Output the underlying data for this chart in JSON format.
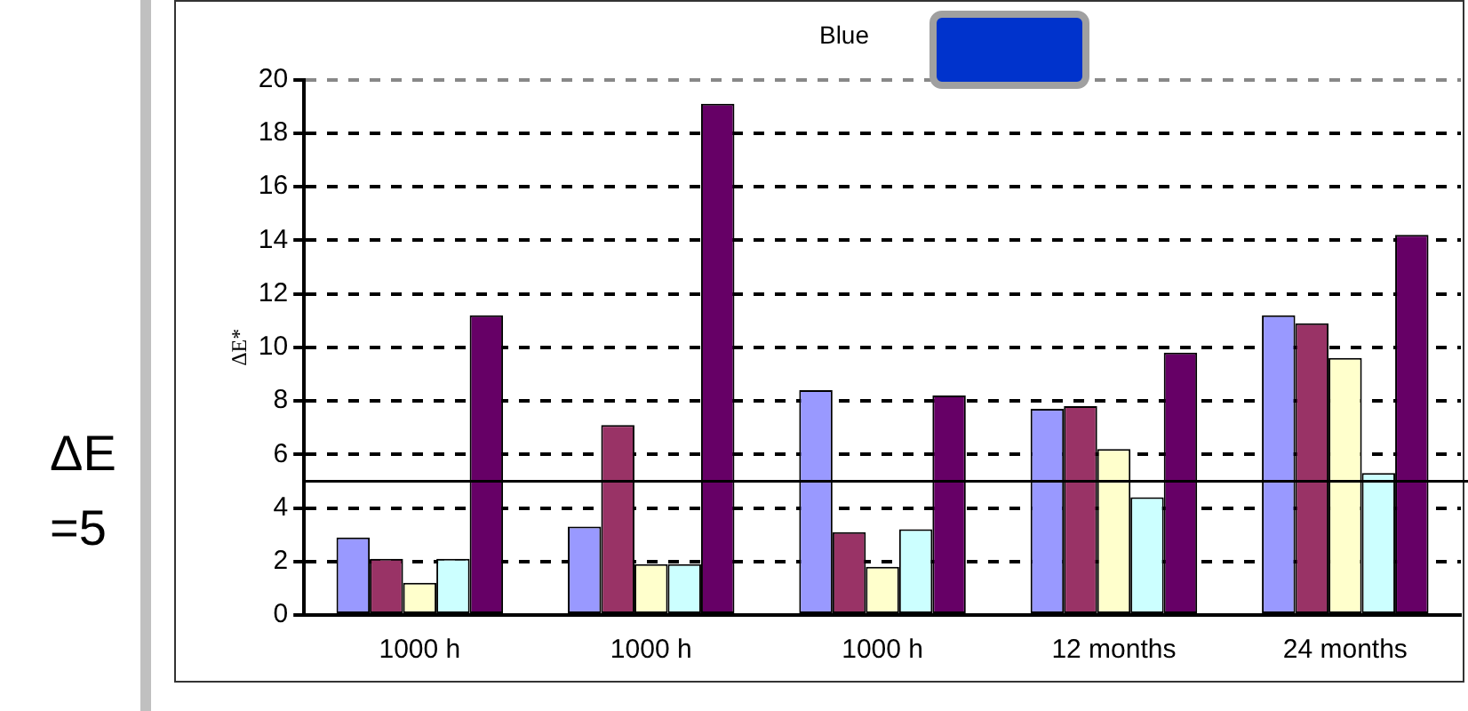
{
  "chart_data": {
    "type": "bar",
    "title": "Blue",
    "ylabel": "ΔE*",
    "categories": [
      "1000 h",
      "1000 h",
      "1000 h",
      "12 months",
      "24 months"
    ],
    "series": [
      {
        "color": "#9999ff",
        "values": [
          2.9,
          3.3,
          8.4,
          7.7,
          11.2
        ]
      },
      {
        "color": "#993366",
        "values": [
          2.1,
          7.1,
          3.1,
          7.8,
          10.9
        ]
      },
      {
        "color": "#ffffcc",
        "values": [
          1.2,
          1.9,
          1.8,
          6.2,
          9.6
        ]
      },
      {
        "color": "#ccffff",
        "values": [
          2.1,
          1.9,
          3.2,
          4.4,
          5.3
        ]
      },
      {
        "color": "#660066",
        "values": [
          11.2,
          19.1,
          8.2,
          9.8,
          14.2
        ]
      }
    ],
    "ylim": [
      0,
      20
    ],
    "yticks": [
      0,
      2,
      4,
      6,
      8,
      10,
      12,
      14,
      16,
      18,
      20
    ],
    "grid": "y",
    "legend": false,
    "ref_lines": [
      {
        "axis": "y",
        "value": 5,
        "label": "ΔE =5",
        "color": "#000000"
      }
    ]
  }
}
